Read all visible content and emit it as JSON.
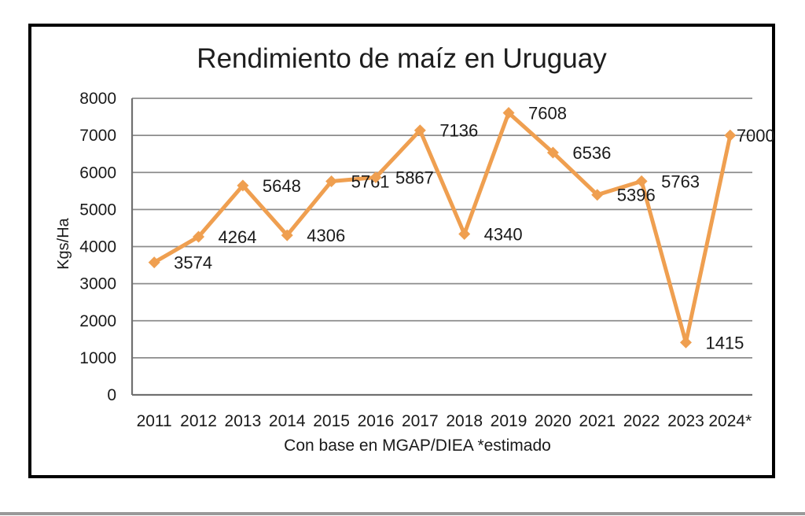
{
  "figure": {
    "title": "Rendimiento de maíz en Uruguay",
    "y_axis_title": "Kgs/Ha",
    "caption": "Con base en MGAP/DIEA *estimado"
  },
  "chart_data": {
    "type": "line",
    "title": "Rendimiento de maíz en Uruguay",
    "xlabel": "",
    "ylabel": "Kgs/Ha",
    "caption": "Con base en MGAP/DIEA *estimado",
    "categories": [
      "2011",
      "2012",
      "2013",
      "2014",
      "2015",
      "2016",
      "2017",
      "2018",
      "2019",
      "2020",
      "2021",
      "2022",
      "2023",
      "2024*"
    ],
    "values": [
      3574,
      4264,
      5648,
      4306,
      5761,
      5867,
      7136,
      4340,
      7608,
      6536,
      5396,
      5763,
      1415,
      7000
    ],
    "ylim": [
      0,
      8000
    ],
    "ytick_step": 1000,
    "grid": "horizontal",
    "legend": "none",
    "marker": "diamond",
    "data_labels": "all"
  },
  "colors": {
    "line": "#EF9F50",
    "gridline": "#8C8C8C",
    "axis": "#707070",
    "text": "#1A1A1A",
    "frame_border": "#000000",
    "background": "#FFFFFF",
    "bottom_rule": "#999999"
  }
}
